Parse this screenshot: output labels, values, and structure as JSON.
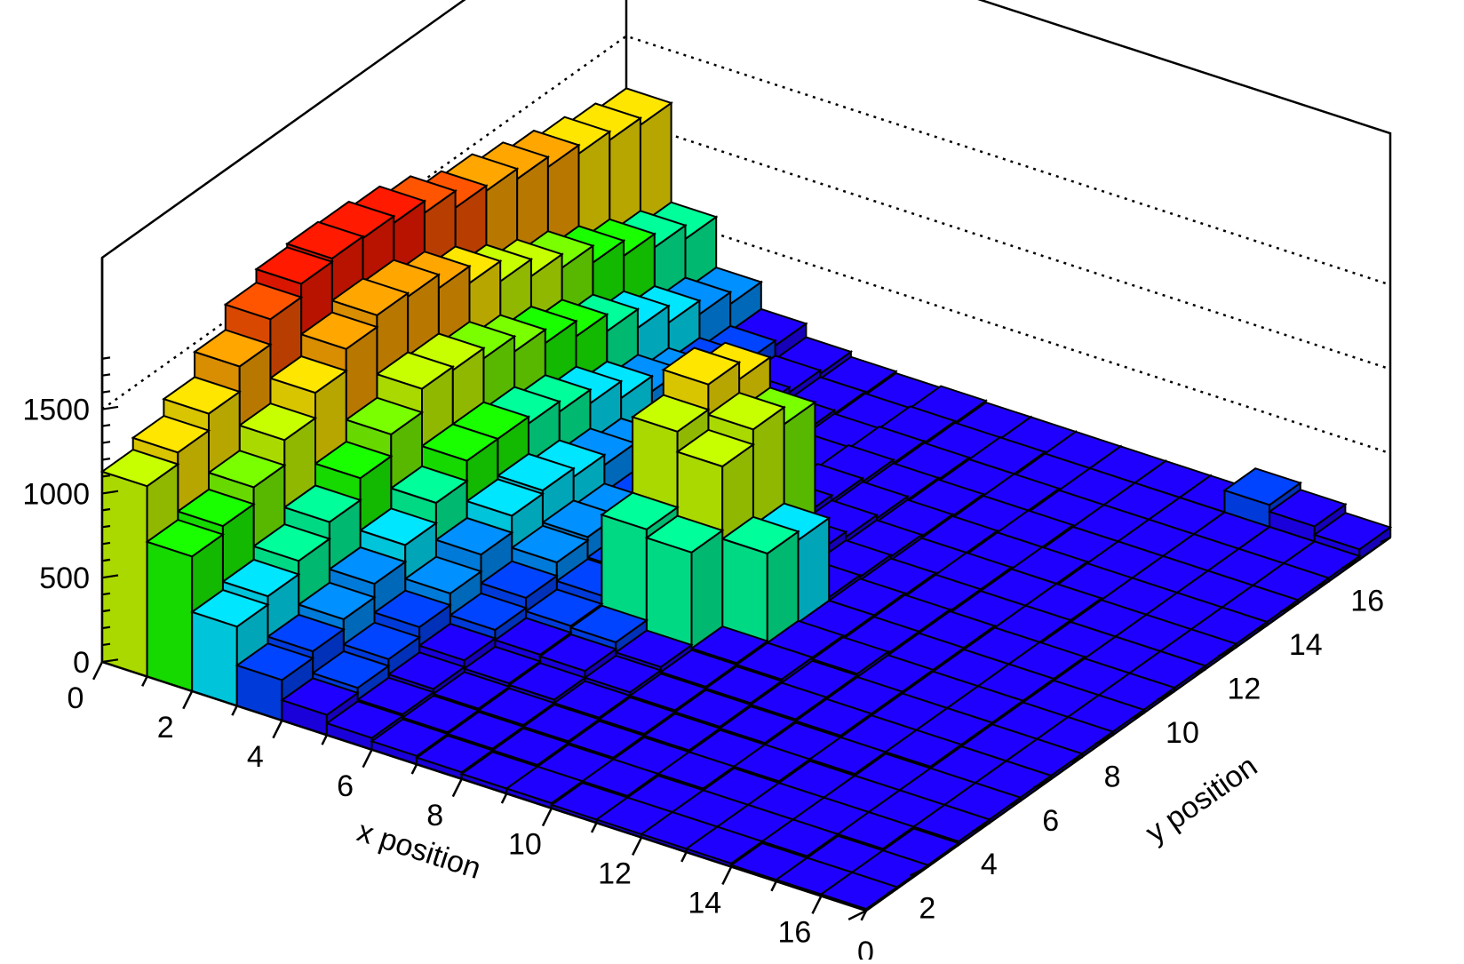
{
  "chart_data": {
    "type": "lego",
    "title": "",
    "xlabel": "x position",
    "ylabel": "y position",
    "zlabel": "",
    "x_range": [
      0,
      17
    ],
    "y_range": [
      0,
      17
    ],
    "z_range": [
      0,
      2400
    ],
    "x_ticks": [
      0,
      2,
      4,
      6,
      8,
      10,
      12,
      14,
      16
    ],
    "y_ticks": [
      0,
      2,
      4,
      6,
      8,
      10,
      12,
      14,
      16
    ],
    "z_ticks": [
      0,
      500,
      1000,
      1500
    ],
    "x_tick_labels": [
      "0",
      "2",
      "4",
      "6",
      "8",
      "10",
      "12",
      "14",
      "16"
    ],
    "y_tick_labels": [
      "0",
      "2",
      "4",
      "6",
      "8",
      "10",
      "12",
      "14",
      "16"
    ],
    "z_tick_labels": [
      "0",
      "500",
      "1000",
      "1500"
    ],
    "grid": "z-gridlines on back walls (dotted)",
    "palette": [
      "#1f00ff",
      "#0044ff",
      "#0090ff",
      "#00e6ff",
      "#00ff9a",
      "#1aff00",
      "#7aff00",
      "#c8ff00",
      "#ffe600",
      "#ffa600",
      "#ff5500",
      "#ff1a00"
    ],
    "z": [
      [
        1130,
        1200,
        1300,
        1450,
        1600,
        1680,
        1700,
        1690,
        1650,
        1580,
        1480,
        1450,
        1390,
        1330,
        1280,
        1230,
        1190
      ],
      [
        800,
        850,
        950,
        1100,
        1250,
        1380,
        1450,
        1430,
        1350,
        1250,
        1130,
        1030,
        950,
        850,
        760,
        680,
        600
      ],
      [
        470,
        520,
        600,
        700,
        830,
        960,
        1100,
        1080,
        1020,
        930,
        850,
        760,
        660,
        550,
        450,
        370,
        300
      ],
      [
        240,
        280,
        340,
        420,
        520,
        640,
        760,
        760,
        720,
        660,
        580,
        480,
        390,
        300,
        230,
        170,
        140
      ],
      [
        120,
        150,
        190,
        250,
        320,
        420,
        520,
        540,
        490,
        430,
        360,
        280,
        210,
        150,
        110,
        80,
        60
      ],
      [
        70,
        80,
        100,
        140,
        190,
        250,
        330,
        350,
        320,
        270,
        220,
        170,
        120,
        90,
        60,
        40,
        30
      ],
      [
        50,
        60,
        70,
        90,
        130,
        170,
        220,
        230,
        210,
        180,
        140,
        110,
        80,
        60,
        40,
        30,
        20
      ],
      [
        40,
        50,
        60,
        80,
        120,
        160,
        700,
        1150,
        1300,
        1200,
        160,
        120,
        90,
        70,
        50,
        40,
        30
      ],
      [
        30,
        40,
        50,
        60,
        80,
        100,
        650,
        1030,
        1120,
        1020,
        120,
        90,
        70,
        50,
        40,
        30,
        20
      ],
      [
        30,
        30,
        40,
        50,
        60,
        70,
        80,
        600,
        550,
        80,
        70,
        60,
        50,
        40,
        30,
        30,
        20
      ],
      [
        20,
        30,
        30,
        40,
        50,
        60,
        70,
        70,
        60,
        60,
        50,
        40,
        40,
        30,
        30,
        20,
        20
      ],
      [
        20,
        20,
        30,
        30,
        40,
        50,
        50,
        60,
        50,
        50,
        40,
        40,
        30,
        30,
        20,
        20,
        20
      ],
      [
        20,
        20,
        20,
        30,
        30,
        40,
        40,
        40,
        40,
        40,
        30,
        30,
        30,
        20,
        20,
        20,
        20
      ],
      [
        20,
        20,
        20,
        20,
        30,
        30,
        30,
        30,
        30,
        30,
        30,
        30,
        20,
        20,
        20,
        20,
        20
      ],
      [
        10,
        20,
        20,
        20,
        20,
        30,
        30,
        30,
        30,
        30,
        20,
        20,
        20,
        20,
        20,
        20,
        150
      ],
      [
        10,
        10,
        20,
        20,
        20,
        20,
        20,
        20,
        20,
        20,
        20,
        20,
        20,
        20,
        20,
        20,
        110
      ],
      [
        10,
        10,
        10,
        20,
        20,
        20,
        20,
        20,
        20,
        20,
        20,
        20,
        20,
        20,
        20,
        20,
        60
      ]
    ]
  }
}
